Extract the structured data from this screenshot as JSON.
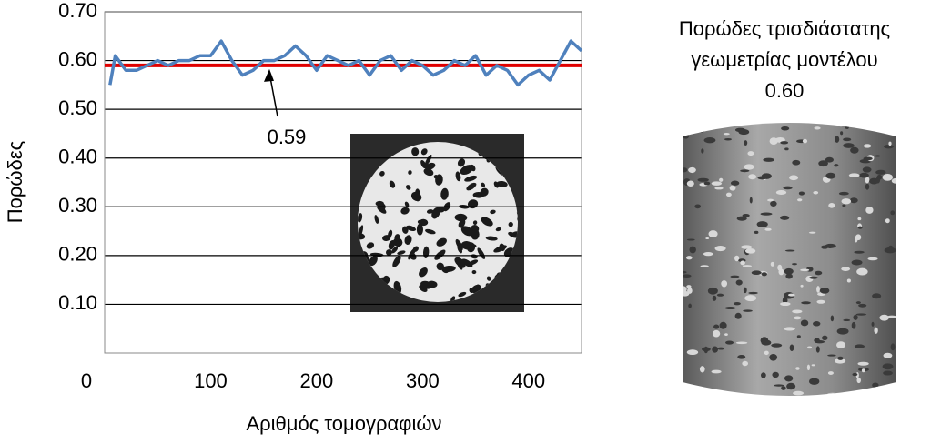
{
  "chart_data": {
    "type": "line",
    "x_label": "Αριθμός τομογραφιών",
    "y_label": "Πορώδες",
    "x": [
      5,
      10,
      20,
      30,
      40,
      50,
      60,
      70,
      80,
      90,
      100,
      110,
      120,
      130,
      140,
      150,
      160,
      170,
      180,
      190,
      200,
      210,
      220,
      230,
      240,
      250,
      260,
      270,
      280,
      290,
      300,
      310,
      320,
      330,
      340,
      350,
      360,
      370,
      380,
      390,
      400,
      410,
      420,
      430,
      440,
      450
    ],
    "series": [
      {
        "color": "#4f81bd",
        "values": [
          0.55,
          0.61,
          0.58,
          0.58,
          0.59,
          0.6,
          0.59,
          0.6,
          0.6,
          0.61,
          0.61,
          0.64,
          0.6,
          0.57,
          0.58,
          0.6,
          0.6,
          0.61,
          0.63,
          0.61,
          0.58,
          0.61,
          0.6,
          0.59,
          0.6,
          0.57,
          0.6,
          0.61,
          0.58,
          0.6,
          0.59,
          0.57,
          0.58,
          0.6,
          0.59,
          0.61,
          0.57,
          0.59,
          0.58,
          0.55,
          0.57,
          0.58,
          0.56,
          0.6,
          0.64,
          0.62
        ]
      }
    ],
    "xlim": [
      0,
      450
    ],
    "ylim": [
      0,
      0.7
    ],
    "xticks": [
      0,
      100,
      200,
      300,
      400
    ],
    "yticks": [
      {
        "value": 0.1,
        "label": "0.10"
      },
      {
        "value": 0.2,
        "label": "0.20"
      },
      {
        "value": 0.3,
        "label": "0.30"
      },
      {
        "value": 0.4,
        "label": "0.40"
      },
      {
        "value": 0.5,
        "label": "0.50"
      },
      {
        "value": 0.6,
        "label": "0.60"
      },
      {
        "value": 0.7,
        "label": "0.70"
      }
    ],
    "grid": true,
    "reference_line": {
      "value": 0.59,
      "label": "0.59",
      "color": "#e00000"
    }
  },
  "model": {
    "caption": [
      "Πορώδες τρισδιάστατης",
      "γεωμετρίας μοντέλου"
    ],
    "porosity": "0.60"
  }
}
